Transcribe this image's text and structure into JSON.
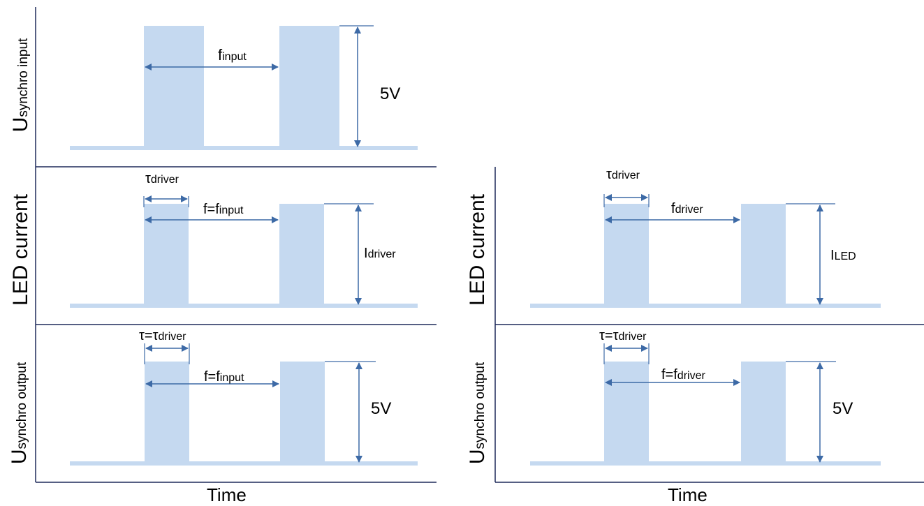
{
  "axes": {
    "u_synchro_input": {
      "main": "U",
      "sub": "synchro input"
    },
    "led_current_left": {
      "main": "LED current"
    },
    "u_synchro_output_left": {
      "main": "U",
      "sub": "synchro output"
    },
    "led_current_right": {
      "main": "LED current"
    },
    "u_synchro_output_right": {
      "main": "U",
      "sub": "synchro output"
    },
    "time_left": "Time",
    "time_right": "Time"
  },
  "labels": {
    "f_input": {
      "main": "f",
      "sub": "input"
    },
    "v_input": "5V",
    "tau_driver_left": {
      "main": "τ",
      "sub": "driver"
    },
    "f_eq_input_left": {
      "main": "f=f",
      "sub": "input"
    },
    "i_driver": {
      "main": "I",
      "sub": "driver"
    },
    "tau_eq_left": {
      "main": "τ=τ",
      "sub": "driver"
    },
    "f_eq_input_left2": {
      "main": "f=f",
      "sub": "input"
    },
    "v_output_left": "5V",
    "tau_driver_right": {
      "main": "τ",
      "sub": "driver"
    },
    "f_driver": {
      "main": "f",
      "sub": "driver"
    },
    "i_led": {
      "main": "I",
      "sub": "LED"
    },
    "tau_eq_right": {
      "main": "τ=τ",
      "sub": "driver"
    },
    "f_eq_driver_right": {
      "main": "f=f",
      "sub": "driver"
    },
    "v_output_right": "5V"
  },
  "colors": {
    "pulse": "#c5d9f0",
    "baseline": "#c5d9f0",
    "arrow": "#3d6aa6",
    "axis": "#1f2a5a"
  }
}
